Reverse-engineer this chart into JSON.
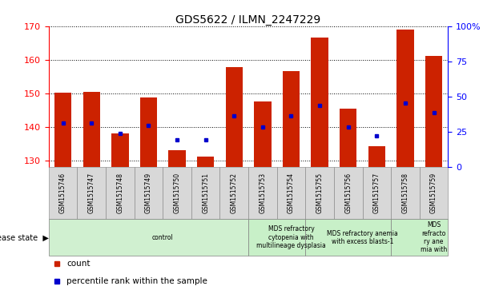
{
  "title": "GDS5622 / ILMN_2247229",
  "samples": [
    "GSM1515746",
    "GSM1515747",
    "GSM1515748",
    "GSM1515749",
    "GSM1515750",
    "GSM1515751",
    "GSM1515752",
    "GSM1515753",
    "GSM1515754",
    "GSM1515755",
    "GSM1515756",
    "GSM1515757",
    "GSM1515758",
    "GSM1515759"
  ],
  "counts": [
    150.2,
    150.3,
    138.0,
    148.8,
    133.0,
    131.2,
    157.8,
    147.5,
    156.5,
    166.5,
    145.5,
    134.2,
    169.0,
    161.0
  ],
  "percentile_values": [
    141.2,
    141.2,
    138.0,
    140.3,
    136.0,
    136.2,
    143.2,
    140.0,
    143.2,
    146.3,
    140.0,
    137.2,
    147.0,
    144.2
  ],
  "y_min": 128,
  "y_max": 170,
  "y_ticks": [
    130,
    140,
    150,
    160,
    170
  ],
  "y2_ticks_pct": [
    0,
    25,
    50,
    75,
    100
  ],
  "bar_color": "#cc2200",
  "square_color": "#0000cc",
  "disease_groups": [
    {
      "label": "control",
      "start": 0,
      "end": 7,
      "color": "#d0f0d0"
    },
    {
      "label": "MDS refractory\ncytopenia with\nmultilineage dysplasia",
      "start": 7,
      "end": 9,
      "color": "#c8f0c8"
    },
    {
      "label": "MDS refractory anemia\nwith excess blasts-1",
      "start": 9,
      "end": 12,
      "color": "#c8f0c8"
    },
    {
      "label": "MDS\nrefracto\nry ane\nmia with",
      "start": 12,
      "end": 14,
      "color": "#c8f0c8"
    }
  ],
  "legend_items": [
    {
      "color": "#cc2200",
      "label": "count"
    },
    {
      "color": "#0000cc",
      "label": "percentile rank within the sample"
    }
  ],
  "disease_state_label": "disease state"
}
